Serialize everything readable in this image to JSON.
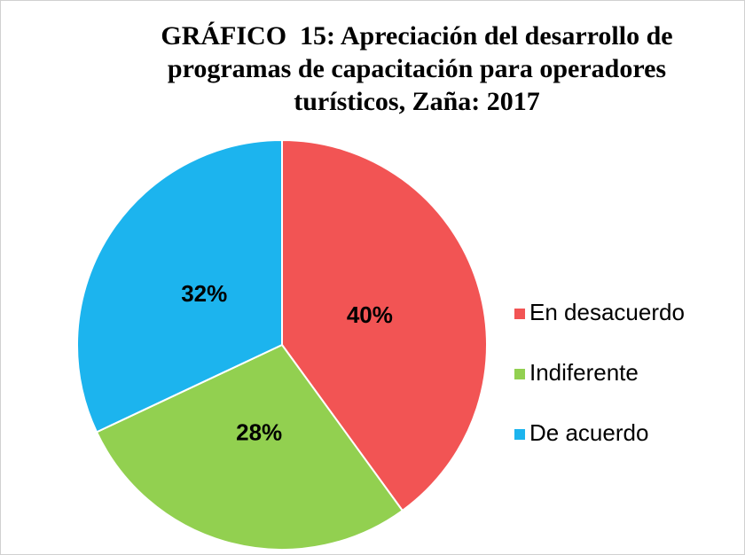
{
  "chart_data": {
    "type": "pie",
    "title": "GRÁFICO  15: Apreciación del desarrollo de programas de capacitación para operadores turísticos, Zaña: 2017",
    "categories": [
      "En desacuerdo",
      "Indiferente",
      "De acuerdo"
    ],
    "values": [
      40,
      28,
      32
    ],
    "value_labels": [
      "40%",
      "28%",
      "32%"
    ],
    "colors": [
      "#f25454",
      "#92d050",
      "#1cb4ee"
    ],
    "legend": "right"
  }
}
